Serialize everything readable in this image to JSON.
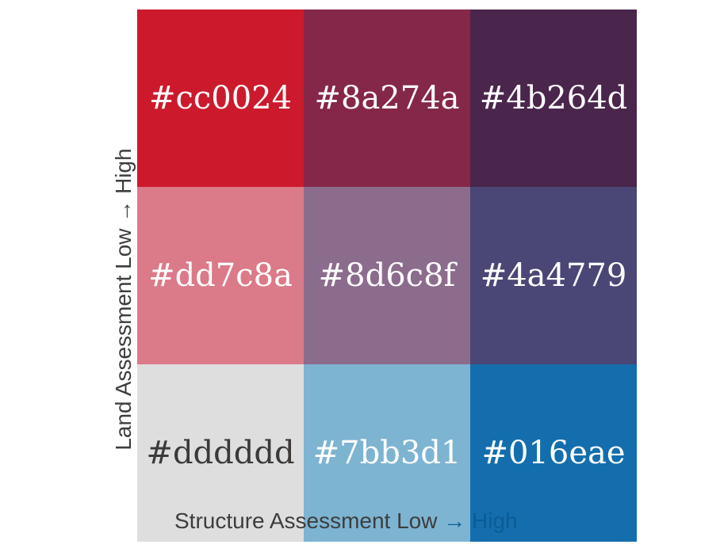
{
  "axes": {
    "y_label": "Land Assessment Low → High",
    "x_label_main": "Structure Assessment Low ",
    "x_label_tail": "→ High"
  },
  "cells": [
    {
      "label": "#cc0024",
      "color": "#cc1a2c",
      "text_color": "#ffffff"
    },
    {
      "label": "#8a274a",
      "color": "#852748",
      "text_color": "#ffffff"
    },
    {
      "label": "#4b264d",
      "color": "#4a254c",
      "text_color": "#ffffff"
    },
    {
      "label": "#dd7c8a",
      "color": "#db7a89",
      "text_color": "#ffffff"
    },
    {
      "label": "#8d6c8f",
      "color": "#8c6c8d",
      "text_color": "#ffffff"
    },
    {
      "label": "#4a4779",
      "color": "#4a4676",
      "text_color": "#ffffff"
    },
    {
      "label": "#dddddd",
      "color": "#dedede",
      "text_color": "#3a3a3a"
    },
    {
      "label": "#7bb3d1",
      "color": "#7db4d2",
      "text_color": "#ffffff"
    },
    {
      "label": "#016eae",
      "color": "#146ead",
      "text_color": "#ffffff"
    }
  ]
}
